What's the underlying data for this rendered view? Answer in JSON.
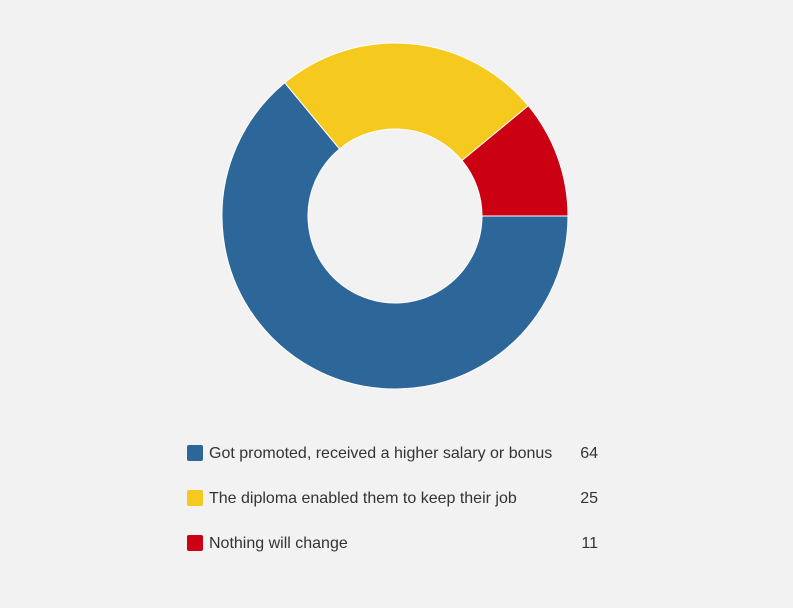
{
  "chart_data": {
    "type": "pie",
    "variant": "donut",
    "slices": [
      {
        "label": "Got promoted, received a higher salary or bonus",
        "value": 64,
        "color": "#2d6699"
      },
      {
        "label": "The diploma enabled them to keep their job",
        "value": 25,
        "color": "#f5c91d"
      },
      {
        "label": "Nothing will change",
        "value": 11,
        "color": "#cc0013"
      }
    ],
    "legend_position": "bottom"
  }
}
